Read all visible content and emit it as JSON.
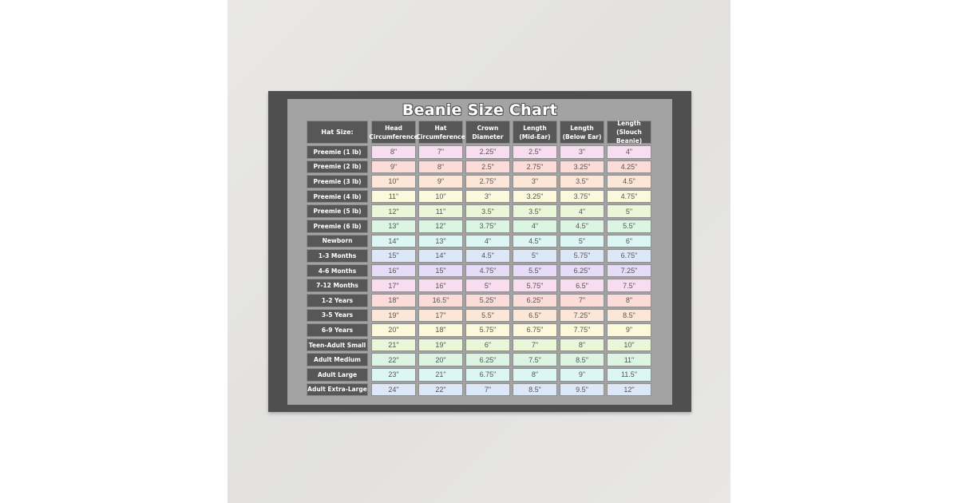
{
  "title": "Beanie Size Chart",
  "headers": [
    "Hat Size:",
    "Head\nCircumference",
    "Hat\nCircumference",
    "Crown\nDiameter",
    "Length\n(Mid-Ear)",
    "Length\n(Below Ear)",
    "Length\n(Slouch Beanie)"
  ],
  "row_colors": [
    "#f8dcf0",
    "#fbdcd8",
    "#fce6d8",
    "#fbf8dc",
    "#eaf6d8",
    "#dcf5e3",
    "#dcf6f4",
    "#dce8f8",
    "#e6dcf8"
  ],
  "rows": [
    [
      "Preemie (1 lb)",
      "8\"",
      "7\"",
      "2.25\"",
      "2.5\"",
      "3\"",
      "4\""
    ],
    [
      "Preemie (2 lb)",
      "9\"",
      "8\"",
      "2.5\"",
      "2.75\"",
      "3.25\"",
      "4.25\""
    ],
    [
      "Preemie (3 lb)",
      "10\"",
      "9\"",
      "2.75\"",
      "3\"",
      "3.5\"",
      "4.5\""
    ],
    [
      "Preemie (4 lb)",
      "11\"",
      "10\"",
      "3\"",
      "3.25\"",
      "3.75\"",
      "4.75\""
    ],
    [
      "Preemie (5 lb)",
      "12\"",
      "11\"",
      "3.5\"",
      "3.5\"",
      "4\"",
      "5\""
    ],
    [
      "Preemie (6 lb)",
      "13\"",
      "12\"",
      "3.75\"",
      "4\"",
      "4.5\"",
      "5.5\""
    ],
    [
      "Newborn",
      "14\"",
      "13\"",
      "4\"",
      "4.5\"",
      "5\"",
      "6\""
    ],
    [
      "1-3 Months",
      "15\"",
      "14\"",
      "4.5\"",
      "5\"",
      "5.75\"",
      "6.75\""
    ],
    [
      "4-6 Months",
      "16\"",
      "15\"",
      "4.75\"",
      "5.5\"",
      "6.25\"",
      "7.25\""
    ],
    [
      "7-12 Months",
      "17\"",
      "16\"",
      "5\"",
      "5.75\"",
      "6.5\"",
      "7.5\""
    ],
    [
      "1-2 Years",
      "18\"",
      "16.5\"",
      "5.25\"",
      "6.25\"",
      "7\"",
      "8\""
    ],
    [
      "3-5 Years",
      "19\"",
      "17\"",
      "5.5\"",
      "6.5\"",
      "7.25\"",
      "8.5\""
    ],
    [
      "6-9 Years",
      "20\"",
      "18\"",
      "5.75\"",
      "6.75\"",
      "7.75\"",
      "9\""
    ],
    [
      "Teen-Adult Small",
      "21\"",
      "19\"",
      "6\"",
      "7\"",
      "8\"",
      "10\""
    ],
    [
      "Adult Medium",
      "22\"",
      "20\"",
      "6.25\"",
      "7.5\"",
      "8.5\"",
      "11\""
    ],
    [
      "Adult Large",
      "23\"",
      "21\"",
      "6.75\"",
      "8\"",
      "9\"",
      "11.5\""
    ],
    [
      "Adult Extra-Large",
      "24\"",
      "22\"",
      "7\"",
      "8.5\"",
      "9.5\"",
      "12\""
    ]
  ]
}
